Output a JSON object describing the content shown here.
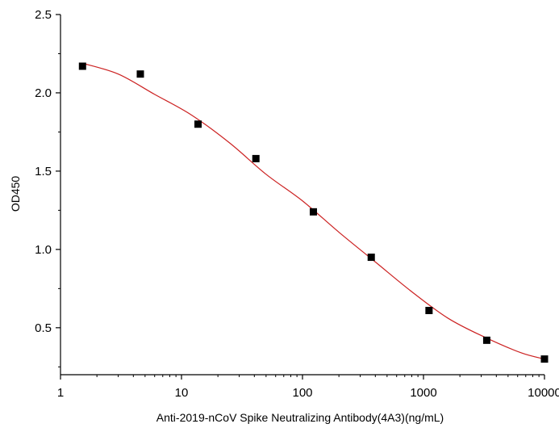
{
  "chart_data": {
    "type": "scatter",
    "title": "",
    "xlabel": "Anti-2019-nCoV Spike Neutralizing Antibody(4A3)(ng/mL)",
    "ylabel": "OD450",
    "x_scale": "log",
    "xlim": [
      1,
      10000
    ],
    "ylim": [
      0.2,
      2.5
    ],
    "x_ticks": [
      1,
      10,
      100,
      1000,
      10000
    ],
    "x_tick_labels": [
      "1",
      "10",
      "100",
      "1000",
      "10000"
    ],
    "y_ticks": [
      0.5,
      1.0,
      1.5,
      2.0,
      2.5
    ],
    "y_tick_labels": [
      "0.5",
      "1.0",
      "1.5",
      "2.0",
      "2.5"
    ],
    "grid": false,
    "legend": "none",
    "series": [
      {
        "marker": "square",
        "color": "#000000",
        "x": [
          1.52,
          4.57,
          13.7,
          41.2,
          123,
          370,
          1111,
          3333,
          10000
        ],
        "y": [
          2.17,
          2.12,
          1.8,
          1.58,
          1.24,
          0.95,
          0.61,
          0.42,
          0.3
        ]
      }
    ],
    "fit_curve": {
      "color": "#cc2222",
      "x": [
        1.5,
        3,
        6,
        12,
        25,
        50,
        100,
        200,
        400,
        800,
        1600,
        3200,
        6400,
        10000
      ],
      "y": [
        2.19,
        2.12,
        1.99,
        1.86,
        1.68,
        1.48,
        1.31,
        1.11,
        0.92,
        0.73,
        0.56,
        0.44,
        0.34,
        0.3
      ]
    }
  }
}
